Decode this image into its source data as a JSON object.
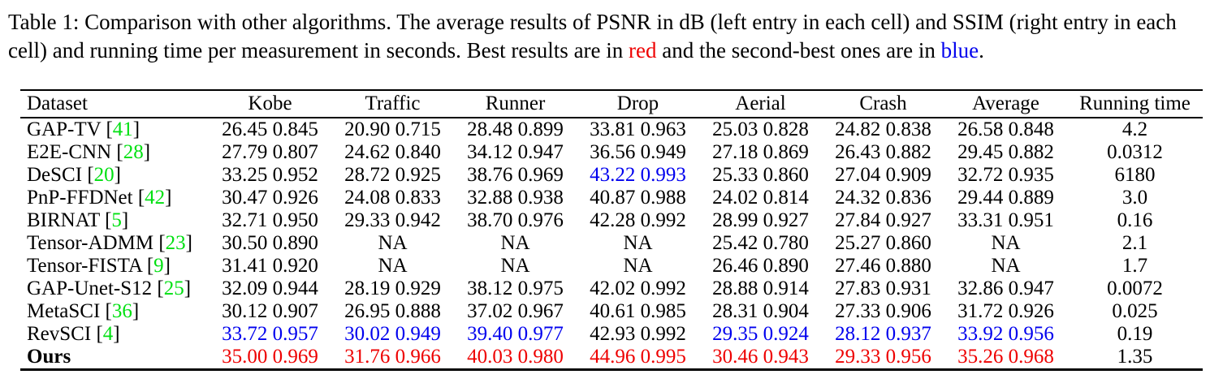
{
  "caption": {
    "part1": "Table 1: Comparison with other algorithms. The average results of PSNR in dB (left entry in each cell) and SSIM (right entry in each cell) and running time per measurement in seconds. Best results are in ",
    "red_word": "red",
    "part2": " and the second-best ones are in ",
    "blue_word": "blue",
    "part3": "."
  },
  "colors": {
    "text": "#000000",
    "best": "#ee0000",
    "second_best": "#0000ee",
    "citation": "#00e011"
  },
  "table": {
    "columns": [
      "Dataset",
      "Kobe",
      "Traffic",
      "Runner",
      "Drop",
      "Aerial",
      "Crash",
      "Average",
      "Running time"
    ],
    "rows": [
      {
        "dataset": "GAP-TV",
        "ref": "41",
        "bold": false,
        "cells": [
          [
            "26.45 0.845",
            "k"
          ],
          [
            "20.90 0.715",
            "k"
          ],
          [
            "28.48 0.899",
            "k"
          ],
          [
            "33.81 0.963",
            "k"
          ],
          [
            "25.03 0.828",
            "k"
          ],
          [
            "24.82 0.838",
            "k"
          ],
          [
            "26.58 0.848",
            "k"
          ],
          [
            "4.2",
            "k"
          ]
        ]
      },
      {
        "dataset": "E2E-CNN",
        "ref": "28",
        "bold": false,
        "cells": [
          [
            "27.79 0.807",
            "k"
          ],
          [
            "24.62 0.840",
            "k"
          ],
          [
            "34.12 0.947",
            "k"
          ],
          [
            "36.56 0.949",
            "k"
          ],
          [
            "27.18 0.869",
            "k"
          ],
          [
            "26.43 0.882",
            "k"
          ],
          [
            "29.45 0.882",
            "k"
          ],
          [
            "0.0312",
            "k"
          ]
        ]
      },
      {
        "dataset": "DeSCI",
        "ref": "20",
        "bold": false,
        "cells": [
          [
            "33.25 0.952",
            "k"
          ],
          [
            "28.72 0.925",
            "k"
          ],
          [
            "38.76 0.969",
            "k"
          ],
          [
            "43.22 0.993",
            "b"
          ],
          [
            "25.33 0.860",
            "k"
          ],
          [
            "27.04 0.909",
            "k"
          ],
          [
            "32.72 0.935",
            "k"
          ],
          [
            "6180",
            "k"
          ]
        ]
      },
      {
        "dataset": "PnP-FFDNet",
        "ref": "42",
        "bold": false,
        "cells": [
          [
            "30.47 0.926",
            "k"
          ],
          [
            "24.08 0.833",
            "k"
          ],
          [
            "32.88 0.938",
            "k"
          ],
          [
            "40.87 0.988",
            "k"
          ],
          [
            "24.02 0.814",
            "k"
          ],
          [
            "24.32 0.836",
            "k"
          ],
          [
            "29.44 0.889",
            "k"
          ],
          [
            "3.0",
            "k"
          ]
        ]
      },
      {
        "dataset": "BIRNAT",
        "ref": "5",
        "bold": false,
        "cells": [
          [
            "32.71 0.950",
            "k"
          ],
          [
            "29.33 0.942",
            "k"
          ],
          [
            "38.70 0.976",
            "k"
          ],
          [
            "42.28 0.992",
            "k"
          ],
          [
            "28.99 0.927",
            "k"
          ],
          [
            "27.84 0.927",
            "k"
          ],
          [
            "33.31 0.951",
            "k"
          ],
          [
            "0.16",
            "k"
          ]
        ]
      },
      {
        "dataset": "Tensor-ADMM",
        "ref": "23",
        "bold": false,
        "cells": [
          [
            "30.50 0.890",
            "k"
          ],
          [
            "NA",
            "k"
          ],
          [
            "NA",
            "k"
          ],
          [
            "NA",
            "k"
          ],
          [
            "25.42 0.780",
            "k"
          ],
          [
            "25.27 0.860",
            "k"
          ],
          [
            "NA",
            "k"
          ],
          [
            "2.1",
            "k"
          ]
        ]
      },
      {
        "dataset": "Tensor-FISTA",
        "ref": "9",
        "bold": false,
        "cells": [
          [
            "31.41 0.920",
            "k"
          ],
          [
            "NA",
            "k"
          ],
          [
            "NA",
            "k"
          ],
          [
            "NA",
            "k"
          ],
          [
            "26.46 0.890",
            "k"
          ],
          [
            "27.46 0.880",
            "k"
          ],
          [
            "NA",
            "k"
          ],
          [
            "1.7",
            "k"
          ]
        ]
      },
      {
        "dataset": "GAP-Unet-S12",
        "ref": "25",
        "bold": false,
        "cells": [
          [
            "32.09 0.944",
            "k"
          ],
          [
            "28.19 0.929",
            "k"
          ],
          [
            "38.12 0.975",
            "k"
          ],
          [
            "42.02 0.992",
            "k"
          ],
          [
            "28.88 0.914",
            "k"
          ],
          [
            "27.83 0.931",
            "k"
          ],
          [
            "32.86 0.947",
            "k"
          ],
          [
            "0.0072",
            "k"
          ]
        ]
      },
      {
        "dataset": "MetaSCI",
        "ref": "36",
        "bold": false,
        "cells": [
          [
            "30.12 0.907",
            "k"
          ],
          [
            "26.95 0.888",
            "k"
          ],
          [
            "37.02 0.967",
            "k"
          ],
          [
            "40.61 0.985",
            "k"
          ],
          [
            "28.31 0.904",
            "k"
          ],
          [
            "27.33 0.906",
            "k"
          ],
          [
            "31.72 0.926",
            "k"
          ],
          [
            "0.025",
            "k"
          ]
        ]
      },
      {
        "dataset": "RevSCI",
        "ref": "4",
        "bold": false,
        "cells": [
          [
            "33.72 0.957",
            "b"
          ],
          [
            "30.02 0.949",
            "b"
          ],
          [
            "39.40 0.977",
            "b"
          ],
          [
            "42.93 0.992",
            "k"
          ],
          [
            "29.35 0.924",
            "b"
          ],
          [
            "28.12 0.937",
            "b"
          ],
          [
            "33.92 0.956",
            "b"
          ],
          [
            "0.19",
            "k"
          ]
        ]
      },
      {
        "dataset": "Ours",
        "ref": null,
        "bold": true,
        "cells": [
          [
            "35.00 0.969",
            "r"
          ],
          [
            "31.76 0.966",
            "r"
          ],
          [
            "40.03 0.980",
            "r"
          ],
          [
            "44.96 0.995",
            "r"
          ],
          [
            "30.46 0.943",
            "r"
          ],
          [
            "29.33 0.956",
            "r"
          ],
          [
            "35.26 0.968",
            "r"
          ],
          [
            "1.35",
            "k"
          ]
        ]
      }
    ]
  }
}
